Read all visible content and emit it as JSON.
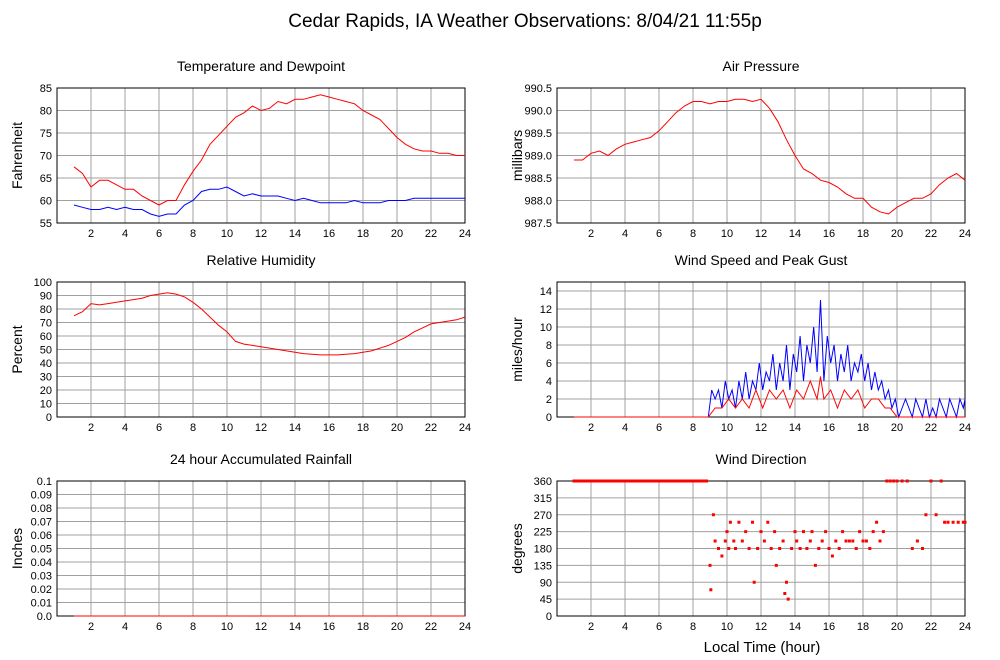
{
  "page": {
    "title": "Cedar Rapids, IA Weather Observations: 8/04/21 11:55p",
    "xlabel": "Local Time (hour)"
  },
  "colors": {
    "primary": "#ff0000",
    "secondary": "#0000ff",
    "grid": "#a0a0a0",
    "frame": "#000000"
  },
  "chart_data": [
    {
      "id": "temp",
      "type": "line",
      "title": "Temperature and Dewpoint",
      "xlabel": "",
      "ylabel": "Fahrenheit",
      "xlim": [
        0,
        24
      ],
      "ylim": [
        55,
        85
      ],
      "xticks": [
        2,
        4,
        6,
        8,
        10,
        12,
        14,
        16,
        18,
        20,
        22,
        24
      ],
      "yticks": [
        55,
        60,
        65,
        70,
        75,
        80,
        85
      ],
      "ytick_labels": [
        "55",
        "60",
        "65",
        "70",
        "75",
        "80",
        "85"
      ],
      "grid": true,
      "series": [
        {
          "color": "#ff0000",
          "x": [
            1.0,
            1.5,
            2.0,
            2.5,
            3.0,
            3.5,
            4.0,
            4.5,
            5.0,
            5.5,
            6.0,
            6.5,
            7.0,
            7.5,
            8.0,
            8.5,
            9.0,
            9.5,
            10.0,
            10.5,
            11.0,
            11.5,
            12.0,
            12.5,
            13.0,
            13.5,
            14.0,
            14.5,
            15.0,
            15.5,
            16.0,
            16.5,
            17.0,
            17.5,
            18.0,
            18.5,
            19.0,
            19.5,
            20.0,
            20.5,
            21.0,
            21.5,
            22.0,
            22.5,
            23.0,
            23.5,
            24.0
          ],
          "values": [
            67.5,
            66,
            63,
            64.5,
            64.5,
            63.5,
            62.5,
            62.5,
            61,
            60,
            59,
            60,
            60,
            63.5,
            66.5,
            69,
            72.5,
            74.5,
            76.5,
            78.5,
            79.5,
            81,
            80,
            80.5,
            82,
            81.5,
            82.5,
            82.5,
            83,
            83.5,
            83,
            82.5,
            82,
            81.5,
            80,
            79,
            78,
            76,
            74,
            72.5,
            71.5,
            71,
            71,
            70.5,
            70.5,
            70,
            70
          ]
        },
        {
          "color": "#0000ff",
          "x": [
            1.0,
            1.5,
            2.0,
            2.5,
            3.0,
            3.5,
            4.0,
            4.5,
            5.0,
            5.5,
            6.0,
            6.5,
            7.0,
            7.5,
            8.0,
            8.5,
            9.0,
            9.5,
            10.0,
            10.5,
            11.0,
            11.5,
            12.0,
            12.5,
            13.0,
            13.5,
            14.0,
            14.5,
            15.0,
            15.5,
            16.0,
            16.5,
            17.0,
            17.5,
            18.0,
            18.5,
            19.0,
            19.5,
            20.0,
            20.5,
            21.0,
            21.5,
            22.0,
            22.5,
            23.0,
            23.5,
            24.0
          ],
          "values": [
            59,
            58.5,
            58,
            58,
            58.5,
            58,
            58.5,
            58,
            58,
            57,
            56.5,
            57,
            57,
            59,
            60,
            62,
            62.5,
            62.5,
            63,
            62,
            61,
            61.5,
            61,
            61,
            61,
            60.5,
            60,
            60.5,
            60,
            59.5,
            59.5,
            59.5,
            59.5,
            60,
            59.5,
            59.5,
            59.5,
            60,
            60,
            60,
            60.5,
            60.5,
            60.5,
            60.5,
            60.5,
            60.5,
            60.5
          ]
        }
      ]
    },
    {
      "id": "pressure",
      "type": "line",
      "title": "Air Pressure",
      "xlabel": "",
      "ylabel": "millibars",
      "xlim": [
        0,
        24
      ],
      "ylim": [
        987.5,
        990.5
      ],
      "xticks": [
        2,
        4,
        6,
        8,
        10,
        12,
        14,
        16,
        18,
        20,
        22,
        24
      ],
      "yticks": [
        987.5,
        988.0,
        988.5,
        989.0,
        989.5,
        990.0,
        990.5
      ],
      "ytick_labels": [
        "987.5",
        "988.0",
        "988.5",
        "989.0",
        "989.5",
        "990.0",
        "990.5"
      ],
      "grid": true,
      "series": [
        {
          "color": "#ff0000",
          "x": [
            1.0,
            1.5,
            2.0,
            2.5,
            3.0,
            3.5,
            4.0,
            4.5,
            5.0,
            5.5,
            6.0,
            6.5,
            7.0,
            7.5,
            8.0,
            8.5,
            9.0,
            9.5,
            10.0,
            10.5,
            11.0,
            11.5,
            12.0,
            12.5,
            13.0,
            13.5,
            14.0,
            14.5,
            15.0,
            15.5,
            16.0,
            16.5,
            17.0,
            17.5,
            18.0,
            18.5,
            19.0,
            19.5,
            20.0,
            20.5,
            21.0,
            21.5,
            22.0,
            22.5,
            23.0,
            23.5,
            24.0
          ],
          "values": [
            988.9,
            988.9,
            989.05,
            989.1,
            989.0,
            989.15,
            989.25,
            989.3,
            989.35,
            989.4,
            989.55,
            989.75,
            989.95,
            990.1,
            990.2,
            990.2,
            990.15,
            990.2,
            990.2,
            990.25,
            990.25,
            990.2,
            990.25,
            990.05,
            989.75,
            989.35,
            989.0,
            988.7,
            988.6,
            988.45,
            988.4,
            988.3,
            988.15,
            988.05,
            988.05,
            987.85,
            987.75,
            987.7,
            987.85,
            987.95,
            988.05,
            988.05,
            988.15,
            988.35,
            988.5,
            988.6,
            988.45
          ]
        }
      ]
    },
    {
      "id": "humidity",
      "type": "line",
      "title": "Relative Humidity",
      "xlabel": "",
      "ylabel": "Percent",
      "xlim": [
        0,
        24
      ],
      "ylim": [
        0,
        100
      ],
      "xticks": [
        2,
        4,
        6,
        8,
        10,
        12,
        14,
        16,
        18,
        20,
        22,
        24
      ],
      "yticks": [
        0,
        10,
        20,
        30,
        40,
        50,
        60,
        70,
        80,
        90,
        100
      ],
      "ytick_labels": [
        "0",
        "10",
        "20",
        "30",
        "40",
        "50",
        "60",
        "70",
        "80",
        "90",
        "100"
      ],
      "grid": true,
      "series": [
        {
          "color": "#ff0000",
          "x": [
            1.0,
            1.5,
            2.0,
            2.5,
            3.0,
            3.5,
            4.0,
            4.5,
            5.0,
            5.5,
            6.0,
            6.5,
            7.0,
            7.5,
            8.0,
            8.5,
            9.0,
            9.5,
            10.0,
            10.5,
            11.0,
            11.5,
            12.0,
            12.5,
            13.0,
            13.5,
            14.0,
            14.5,
            15.0,
            15.5,
            16.0,
            16.5,
            17.0,
            17.5,
            18.0,
            18.5,
            19.0,
            19.5,
            20.0,
            20.5,
            21.0,
            21.5,
            22.0,
            22.5,
            23.0,
            23.5,
            24.0
          ],
          "values": [
            75,
            78,
            84,
            83,
            84,
            85,
            86,
            87,
            88,
            90,
            91,
            92,
            91,
            89,
            85,
            80,
            74,
            68,
            63,
            56,
            54,
            53,
            52,
            51,
            50,
            49,
            48,
            47,
            46.5,
            46,
            46,
            46,
            46.5,
            47,
            48,
            49,
            51,
            53,
            56,
            59,
            63,
            66,
            69,
            70,
            71,
            72,
            74
          ]
        }
      ]
    },
    {
      "id": "wind",
      "type": "line",
      "title": "Wind Speed and Peak Gust",
      "xlabel": "",
      "ylabel": "miles/hour",
      "xlim": [
        0,
        24
      ],
      "ylim": [
        0,
        15
      ],
      "xticks": [
        2,
        4,
        6,
        8,
        10,
        12,
        14,
        16,
        18,
        20,
        22,
        24
      ],
      "yticks": [
        0,
        2,
        4,
        6,
        8,
        10,
        12,
        14
      ],
      "ytick_labels": [
        "0",
        "2",
        "4",
        "6",
        "8",
        "10",
        "12",
        "14"
      ],
      "grid": true,
      "series": [
        {
          "color": "#0000ff",
          "x": [
            1.0,
            8.9,
            9.1,
            9.3,
            9.5,
            9.7,
            9.9,
            10.1,
            10.3,
            10.5,
            10.7,
            10.9,
            11.1,
            11.3,
            11.5,
            11.7,
            11.9,
            12.1,
            12.3,
            12.5,
            12.7,
            12.9,
            13.1,
            13.3,
            13.5,
            13.7,
            13.9,
            14.1,
            14.3,
            14.5,
            14.7,
            14.9,
            15.1,
            15.3,
            15.5,
            15.7,
            15.9,
            16.1,
            16.3,
            16.5,
            16.7,
            16.9,
            17.1,
            17.3,
            17.5,
            17.7,
            17.9,
            18.1,
            18.3,
            18.5,
            18.7,
            18.9,
            19.1,
            19.3,
            19.5,
            19.7,
            19.9,
            20.1,
            20.3,
            20.5,
            20.7,
            20.9,
            21.1,
            21.3,
            21.5,
            21.7,
            21.9,
            22.1,
            22.3,
            22.5,
            22.7,
            22.9,
            23.1,
            23.3,
            23.5,
            23.7,
            23.9,
            24.0
          ],
          "values": [
            0,
            0,
            3,
            2,
            3,
            1,
            4,
            2,
            3,
            1,
            4,
            2,
            5,
            2,
            4,
            3,
            6,
            3,
            5,
            4,
            7,
            3,
            6,
            4,
            8,
            3,
            7,
            5,
            9,
            4,
            8,
            6,
            10,
            5,
            13,
            4,
            9,
            6,
            8,
            4,
            7,
            5,
            8,
            4,
            6,
            5,
            7,
            4,
            6,
            3,
            5,
            3,
            4,
            2,
            3,
            1,
            2,
            0,
            1,
            2,
            1,
            0,
            2,
            1,
            0,
            2,
            0,
            1,
            0,
            2,
            1,
            0,
            2,
            1,
            0,
            2,
            1,
            2
          ]
        },
        {
          "color": "#ff0000",
          "x": [
            1.0,
            8.9,
            9.3,
            9.7,
            10.1,
            10.5,
            10.9,
            11.3,
            11.7,
            12.1,
            12.5,
            12.9,
            13.3,
            13.7,
            14.1,
            14.5,
            14.9,
            15.3,
            15.5,
            15.7,
            16.1,
            16.5,
            16.9,
            17.3,
            17.7,
            18.1,
            18.5,
            18.9,
            19.3,
            19.6,
            20.0,
            24.0
          ],
          "values": [
            0,
            0,
            1,
            1,
            2,
            1,
            2,
            1,
            3,
            1,
            3,
            2,
            3,
            1,
            3,
            2,
            4,
            2,
            4.5,
            2,
            3,
            1,
            3,
            2,
            3,
            1,
            2,
            2,
            1,
            1,
            0,
            0
          ]
        }
      ]
    },
    {
      "id": "rain",
      "type": "line",
      "title": "24 hour Accumulated Rainfall",
      "xlabel": "",
      "ylabel": "Inches",
      "xlim": [
        0,
        24
      ],
      "ylim": [
        0,
        0.1
      ],
      "xticks": [
        2,
        4,
        6,
        8,
        10,
        12,
        14,
        16,
        18,
        20,
        22,
        24
      ],
      "yticks": [
        0,
        0.01,
        0.02,
        0.03,
        0.04,
        0.05,
        0.06,
        0.07,
        0.08,
        0.09,
        0.1
      ],
      "ytick_labels": [
        "0.0",
        "0.01",
        "0.02",
        "0.03",
        "0.04",
        "0.05",
        "0.06",
        "0.07",
        "0.08",
        "0.09",
        "0.1"
      ],
      "grid": true,
      "series": [
        {
          "color": "#ff0000",
          "x": [
            1.0,
            24.0
          ],
          "values": [
            0,
            0
          ]
        }
      ]
    },
    {
      "id": "direction",
      "type": "scatter",
      "title": "Wind Direction",
      "xlabel": "Local Time (hour)",
      "ylabel": "degrees",
      "xlim": [
        0,
        24
      ],
      "ylim": [
        0,
        360
      ],
      "xticks": [
        2,
        4,
        6,
        8,
        10,
        12,
        14,
        16,
        18,
        20,
        22,
        24
      ],
      "yticks": [
        0,
        45,
        90,
        135,
        180,
        225,
        270,
        315,
        360
      ],
      "ytick_labels": [
        "0",
        "45",
        "90",
        "135",
        "180",
        "225",
        "270",
        "315",
        "360"
      ],
      "grid": true,
      "series": [
        {
          "color": "#ff0000",
          "x": [
            1.0,
            1.5,
            2.0,
            2.5,
            3.0,
            3.5,
            4.0,
            4.5,
            5.0,
            5.5,
            6.0,
            6.5,
            7.0,
            7.5,
            8.0,
            8.5,
            8.8,
            9.0,
            9.05,
            9.2,
            9.3,
            9.5,
            9.7,
            9.9,
            10.0,
            10.1,
            10.2,
            10.4,
            10.5,
            10.7,
            10.9,
            11.1,
            11.3,
            11.5,
            11.6,
            11.8,
            12.0,
            12.2,
            12.4,
            12.6,
            12.8,
            12.9,
            13.1,
            13.3,
            13.4,
            13.5,
            13.6,
            13.8,
            14.0,
            14.1,
            14.3,
            14.5,
            14.7,
            14.9,
            15.0,
            15.2,
            15.4,
            15.6,
            15.8,
            16.0,
            16.2,
            16.4,
            16.6,
            16.8,
            17.0,
            17.2,
            17.4,
            17.6,
            17.8,
            18.0,
            18.2,
            18.4,
            18.6,
            18.8,
            19.0,
            19.2,
            19.4,
            19.6,
            19.8,
            20.0,
            20.3,
            20.6,
            20.9,
            21.2,
            21.5,
            21.7,
            22.0,
            22.3,
            22.6,
            22.8,
            23.0,
            23.3,
            23.6,
            23.9,
            24.0
          ],
          "values": [
            360,
            360,
            360,
            360,
            360,
            360,
            360,
            360,
            360,
            360,
            360,
            360,
            360,
            360,
            360,
            360,
            360,
            135,
            70,
            270,
            200,
            180,
            160,
            200,
            225,
            180,
            250,
            200,
            180,
            250,
            200,
            225,
            180,
            250,
            90,
            180,
            225,
            200,
            250,
            180,
            225,
            135,
            180,
            200,
            60,
            90,
            45,
            180,
            225,
            200,
            180,
            225,
            180,
            200,
            225,
            135,
            180,
            200,
            225,
            180,
            160,
            200,
            180,
            225,
            200,
            200,
            200,
            180,
            225,
            200,
            200,
            180,
            225,
            250,
            200,
            225,
            360,
            360,
            360,
            360,
            360,
            360,
            180,
            200,
            180,
            270,
            360,
            270,
            360,
            250,
            250,
            250,
            250,
            250,
            250
          ]
        }
      ]
    }
  ]
}
